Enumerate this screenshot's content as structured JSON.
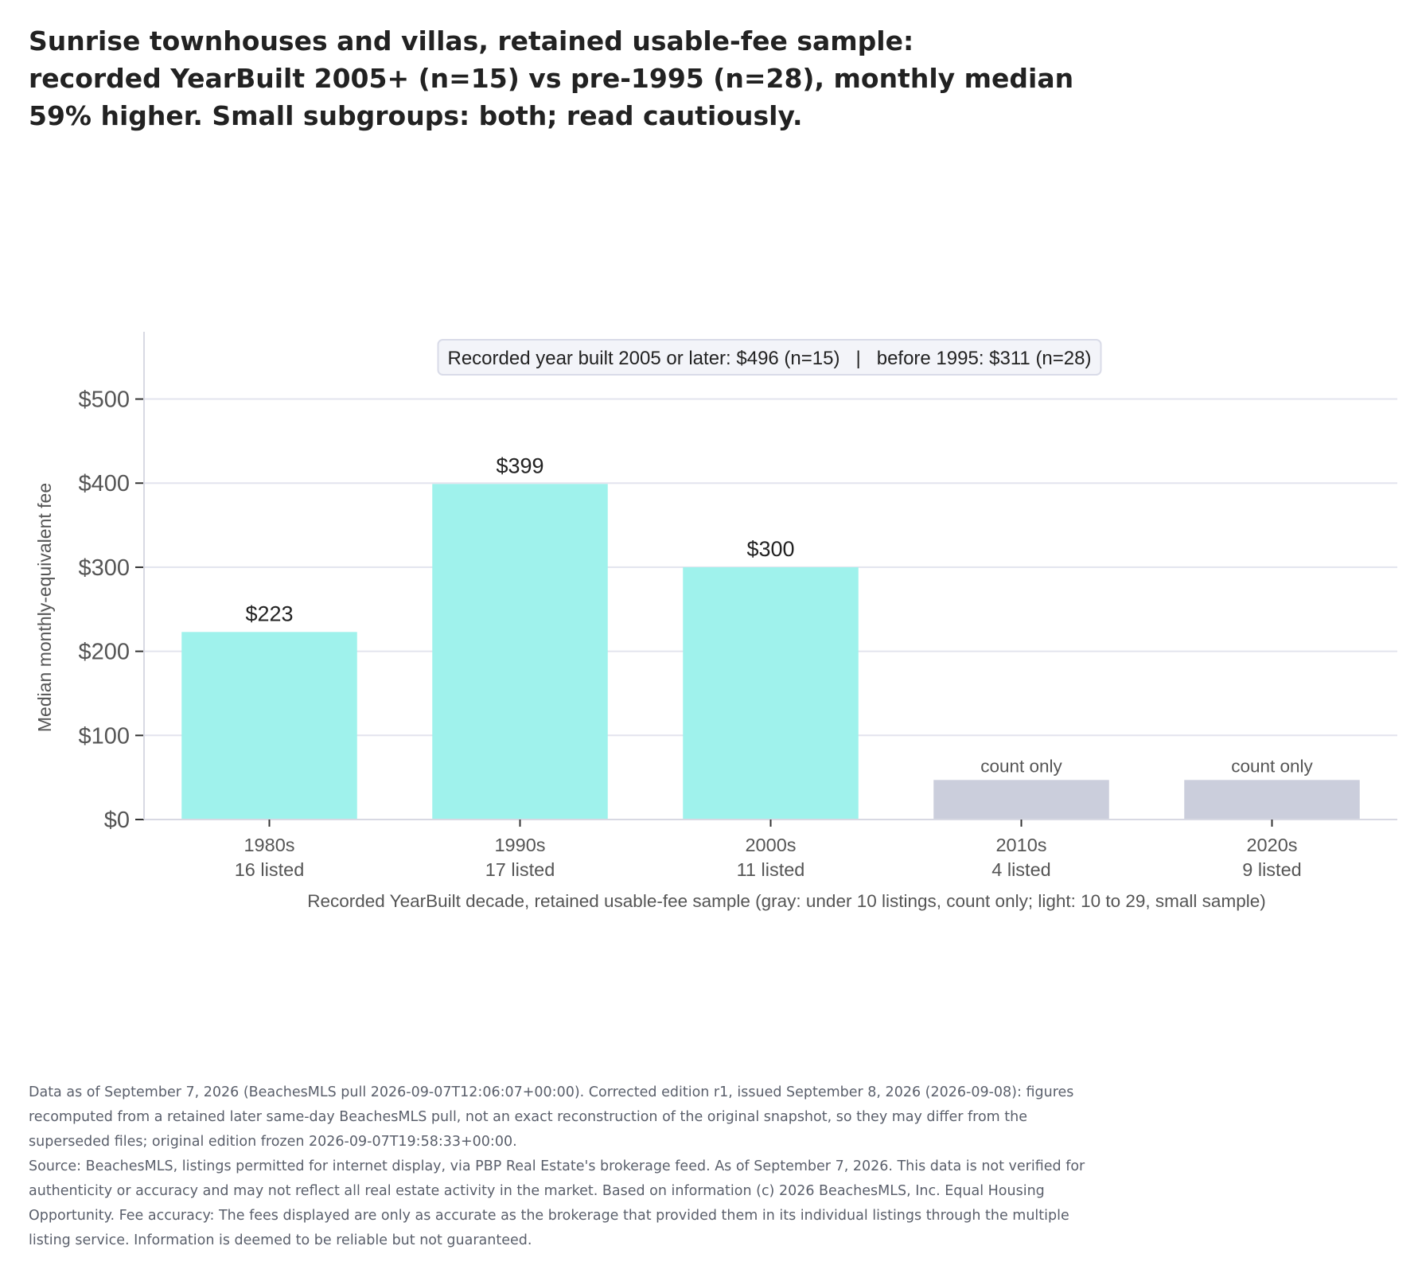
{
  "title_lines": [
    "Sunrise townhouses and villas, retained usable-fee sample:",
    "recorded YearBuilt 2005+ (n=15) vs pre-1995 (n=28), monthly median",
    "59% higher. Small subgroups: both; read cautiously."
  ],
  "chart_data": {
    "type": "bar",
    "categories": [
      "1980s",
      "1990s",
      "2000s",
      "2010s",
      "2020s"
    ],
    "counts_labels": [
      "16 listed",
      "17 listed",
      "11 listed",
      "4 listed",
      "9 listed"
    ],
    "counts": [
      16,
      17,
      11,
      4,
      9
    ],
    "values": [
      223,
      399,
      300,
      null,
      null
    ],
    "value_labels": [
      "$223",
      "$399",
      "$300",
      "count only",
      "count only"
    ],
    "bar_kind": [
      "small",
      "small",
      "small",
      "count-only",
      "count-only"
    ],
    "placeholder_value": 47,
    "ylabel": "Median monthly-equivalent fee",
    "xlabel": "Recorded YearBuilt decade, retained usable-fee sample (gray: under 10 listings, count only; light: 10 to 29, small sample)",
    "ylim": [
      0,
      580
    ],
    "yticks": [
      0,
      100,
      200,
      300,
      400,
      500
    ],
    "ytick_labels": [
      "$0",
      "$100",
      "$200",
      "$300",
      "$400",
      "$500"
    ],
    "grid": true,
    "annotation": "Recorded year built 2005 or later: $496 (n=15)   |   before 1995: $311 (n=28)",
    "colors": {
      "small": "#9ff2ec",
      "count-only": "#cbcedc",
      "grid": "#e3e4ee",
      "axis": "#d8d9e3"
    }
  },
  "footnotes": [
    "Data as of September 7, 2026 (BeachesMLS pull 2026-09-07T12:06:07+00:00). Corrected edition r1, issued September 8, 2026 (2026-09-08): figures recomputed from a retained later same-day BeachesMLS pull, not an exact reconstruction of the original snapshot, so they may differ from the superseded files; original edition frozen 2026-09-07T19:58:33+00:00.",
    "Source: BeachesMLS, listings permitted for internet display, via PBP Real Estate's brokerage feed. As of September 7, 2026. This data is not verified for authenticity or accuracy and may not reflect all real estate activity in the market. Based on information (c) 2026 BeachesMLS, Inc. Equal Housing Opportunity. Fee accuracy: The fees displayed are only as accurate as the brokerage that provided them in its individual listings through the multiple listing service. Information is deemed to be reliable but not guaranteed."
  ]
}
